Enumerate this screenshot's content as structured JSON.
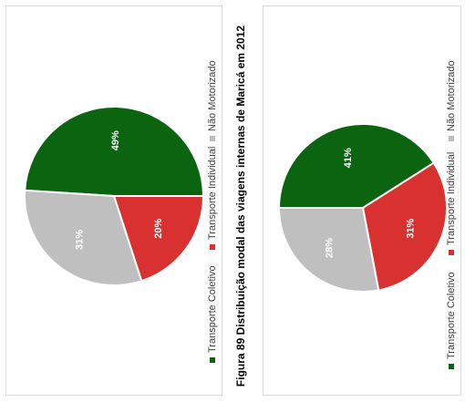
{
  "caption": "Figura 89 Distribuição modal das viagens internas de Maricá em 2012",
  "colors": {
    "coletivo": "#0a6410",
    "individual": "#d93030",
    "nao_motorizado": "#bfbfbf"
  },
  "chart_data": [
    {
      "type": "pie",
      "categories": [
        "Transporte Coletivo",
        "Transporte Individual",
        "Não Motorizado"
      ],
      "values": [
        49,
        20,
        31
      ],
      "labels": [
        "49%",
        "20%",
        "31%"
      ]
    },
    {
      "type": "pie",
      "categories": [
        "Transporte Coletivo",
        "Transporte Individual",
        "Não Motorizado"
      ],
      "values": [
        41,
        31,
        28
      ],
      "labels": [
        "41%",
        "31%",
        "28%"
      ]
    }
  ]
}
